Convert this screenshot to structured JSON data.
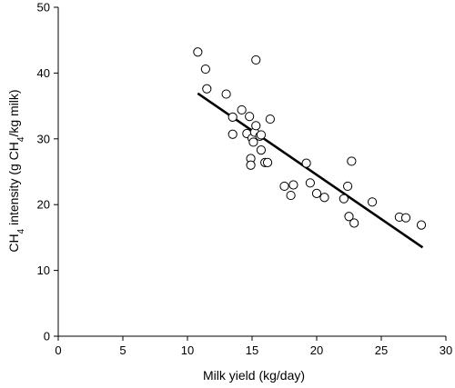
{
  "chart_data": {
    "type": "scatter",
    "title": "",
    "xlabel": "Milk yield (kg/day)",
    "ylabel_parts": [
      "CH",
      "4",
      " intensity (g CH",
      "4",
      "/kg milk)"
    ],
    "xlim": [
      0,
      30
    ],
    "ylim": [
      0,
      50
    ],
    "xticks": [
      0,
      5,
      10,
      15,
      20,
      25,
      30
    ],
    "yticks": [
      0,
      10,
      20,
      30,
      40,
      50
    ],
    "grid": false,
    "points": [
      [
        10.8,
        43.2
      ],
      [
        11.4,
        40.6
      ],
      [
        11.5,
        37.6
      ],
      [
        13.0,
        36.8
      ],
      [
        13.5,
        33.3
      ],
      [
        13.5,
        30.7
      ],
      [
        14.2,
        34.4
      ],
      [
        14.6,
        30.8
      ],
      [
        14.8,
        33.4
      ],
      [
        15.0,
        30.1
      ],
      [
        15.1,
        29.5
      ],
      [
        15.2,
        31.0
      ],
      [
        15.3,
        32.0
      ],
      [
        15.3,
        42.0
      ],
      [
        15.6,
        30.4
      ],
      [
        15.7,
        30.6
      ],
      [
        15.7,
        28.3
      ],
      [
        14.9,
        27.0
      ],
      [
        14.9,
        26.0
      ],
      [
        16.0,
        26.4
      ],
      [
        16.2,
        26.4
      ],
      [
        16.4,
        33.0
      ],
      [
        17.5,
        22.8
      ],
      [
        18.0,
        21.4
      ],
      [
        18.2,
        23.0
      ],
      [
        19.2,
        26.3
      ],
      [
        19.5,
        23.3
      ],
      [
        20.0,
        21.7
      ],
      [
        20.6,
        21.1
      ],
      [
        22.1,
        20.9
      ],
      [
        22.4,
        22.8
      ],
      [
        22.5,
        18.2
      ],
      [
        22.7,
        26.6
      ],
      [
        22.9,
        17.2
      ],
      [
        24.3,
        20.4
      ],
      [
        26.4,
        18.1
      ],
      [
        26.9,
        18.0
      ],
      [
        28.1,
        16.9
      ]
    ],
    "trendline": {
      "x": [
        10.8,
        28.2
      ],
      "y": [
        36.9,
        13.5
      ]
    }
  }
}
